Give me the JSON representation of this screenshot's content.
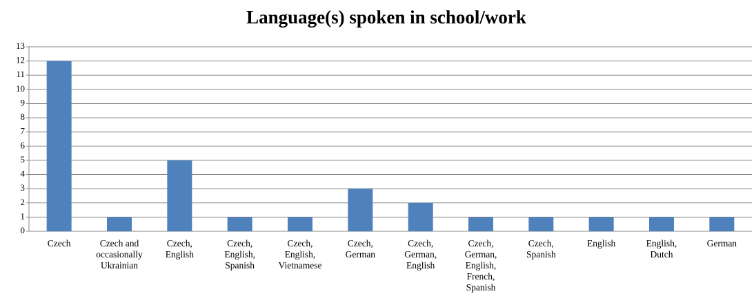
{
  "chart_data": {
    "type": "bar",
    "title": "Language(s) spoken in school/work",
    "categories": [
      "Czech",
      "Czech and occasionally Ukrainian",
      "Czech, English",
      "Czech, English, Spanish",
      "Czech, English, Vietnamese",
      "Czech, German",
      "Czech, German, English",
      "Czech, German, English, French, Spanish",
      "Czech, Spanish",
      "English",
      "English, Dutch",
      "German"
    ],
    "values": [
      12,
      1,
      5,
      1,
      1,
      3,
      2,
      1,
      1,
      1,
      1,
      1
    ],
    "color": "#4f81bd",
    "ylim": [
      0,
      13
    ],
    "yticks": [
      0,
      1,
      2,
      3,
      4,
      5,
      6,
      7,
      8,
      9,
      10,
      11,
      12,
      13
    ],
    "grid": true
  }
}
